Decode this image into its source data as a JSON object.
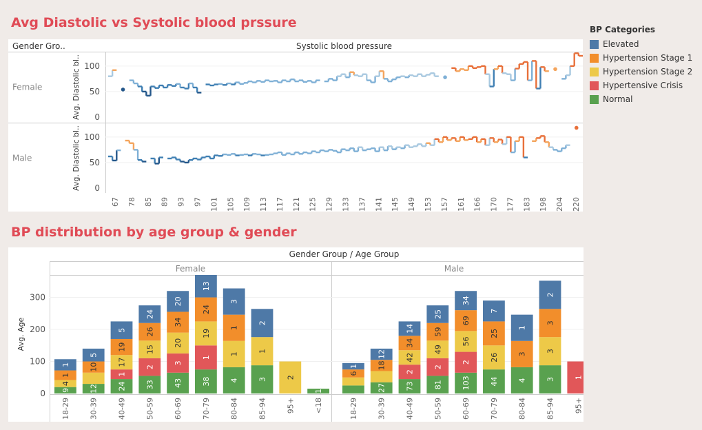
{
  "title1": "Avg Diastolic vs Systolic blood prssure",
  "title2": "BP distribution by age group & gender",
  "legend": {
    "title": "BP Categories",
    "items": [
      {
        "label": "Elevated",
        "color": "#4e79a7"
      },
      {
        "label": "Hypertension Stage 1",
        "color": "#f28e2b"
      },
      {
        "label": "Hypertension Stage 2",
        "color": "#edc948"
      },
      {
        "label": "Hypertensive Crisis",
        "color": "#e15759"
      },
      {
        "label": "Normal",
        "color": "#59a14f"
      }
    ]
  },
  "chart_data": [
    {
      "type": "line",
      "header_left": "Gender Gro..",
      "header": "Systolic blood pressure",
      "ylabel": "Avg. Diastolic bl..",
      "ylim": [
        0,
        120
      ],
      "yticks": [
        0,
        50,
        100
      ],
      "xticks": [
        "67",
        "78",
        "85",
        "89",
        "93",
        "97",
        "101",
        "105",
        "109",
        "113",
        "117",
        "121",
        "125",
        "129",
        "133",
        "137",
        "141",
        "145",
        "149",
        "153",
        "157",
        "161",
        "166",
        "170",
        "177",
        "183",
        "198",
        "204",
        "220"
      ],
      "rows": [
        {
          "name": "Female",
          "values": [
            80,
            92,
            null,
            54,
            null,
            72,
            66,
            60,
            50,
            42,
            60,
            57,
            62,
            58,
            63,
            61,
            65,
            58,
            56,
            66,
            58,
            48,
            null,
            64,
            62,
            64,
            65,
            63,
            66,
            64,
            68,
            65,
            67,
            70,
            68,
            71,
            69,
            72,
            70,
            71,
            68,
            72,
            70,
            74,
            70,
            72,
            69,
            71,
            68,
            72,
            null,
            70,
            75,
            72,
            80,
            84,
            78,
            88,
            82,
            80,
            84,
            72,
            68,
            80,
            90,
            75,
            70,
            74,
            78,
            80,
            78,
            82,
            80,
            84,
            80,
            83,
            86,
            80,
            null,
            78,
            null,
            96,
            90,
            94,
            92,
            100,
            96,
            98,
            100,
            84,
            60,
            94,
            100,
            86,
            84,
            72,
            95,
            104,
            108,
            72,
            110,
            56,
            98,
            90,
            null,
            94,
            null,
            75,
            82,
            100,
            125,
            120
          ]
        },
        {
          "name": "Male",
          "values": [
            62,
            54,
            74,
            null,
            93,
            88,
            75,
            55,
            52,
            null,
            58,
            48,
            60,
            null,
            58,
            60,
            56,
            52,
            50,
            55,
            58,
            56,
            60,
            62,
            58,
            64,
            63,
            66,
            65,
            67,
            64,
            65,
            66,
            64,
            67,
            66,
            64,
            65,
            66,
            68,
            70,
            65,
            68,
            66,
            70,
            67,
            70,
            68,
            72,
            70,
            74,
            72,
            75,
            73,
            70,
            76,
            74,
            78,
            72,
            80,
            74,
            76,
            78,
            72,
            80,
            74,
            82,
            76,
            80,
            78,
            84,
            80,
            82,
            86,
            82,
            88,
            84,
            96,
            90,
            100,
            94,
            98,
            92,
            100,
            94,
            96,
            100,
            90,
            96,
            84,
            98,
            90,
            95,
            86,
            100,
            70,
            92,
            100,
            60,
            null,
            92,
            98,
            102,
            90,
            80,
            75,
            72,
            78,
            84,
            null,
            118
          ]
        }
      ]
    },
    {
      "type": "bar",
      "header": "Gender Group / Age Group",
      "ylabel": "Avg. Age",
      "ylim": [
        0,
        370
      ],
      "yticks": [
        0,
        100,
        200,
        300
      ],
      "panels": [
        {
          "name": "Female",
          "groups": [
            {
              "label": "18-29",
              "segments": [
                {
                  "cat": "Normal",
                  "value": 20,
                  "label": "9"
                },
                {
                  "cat": "Hypertension Stage 2",
                  "value": 22,
                  "label": "4"
                },
                {
                  "cat": "Hypertensive Crisis",
                  "value": 0
                },
                {
                  "cat": "Hypertension Stage 1",
                  "value": 30,
                  "label": "1"
                },
                {
                  "cat": "Elevated",
                  "value": 35,
                  "label": "1"
                }
              ]
            },
            {
              "label": "30-39",
              "segments": [
                {
                  "cat": "Normal",
                  "value": 30,
                  "label": "12"
                },
                {
                  "cat": "Hypertension Stage 2",
                  "value": 35,
                  "label": ""
                },
                {
                  "cat": "Hypertension Stage 1",
                  "value": 35,
                  "label": "10"
                },
                {
                  "cat": "Elevated",
                  "value": 40,
                  "label": "5"
                }
              ]
            },
            {
              "label": "40-49",
              "segments": [
                {
                  "cat": "Normal",
                  "value": 45,
                  "label": "24"
                },
                {
                  "cat": "Hypertensive Crisis",
                  "value": 30,
                  "label": "1"
                },
                {
                  "cat": "Hypertension Stage 2",
                  "value": 45,
                  "label": "17"
                },
                {
                  "cat": "Hypertension Stage 1",
                  "value": 50,
                  "label": "19"
                },
                {
                  "cat": "Elevated",
                  "value": 55,
                  "label": "5"
                }
              ]
            },
            {
              "label": "50-59",
              "segments": [
                {
                  "cat": "Normal",
                  "value": 55,
                  "label": "33"
                },
                {
                  "cat": "Hypertensive Crisis",
                  "value": 55,
                  "label": "2"
                },
                {
                  "cat": "Hypertension Stage 2",
                  "value": 55,
                  "label": "15"
                },
                {
                  "cat": "Hypertension Stage 1",
                  "value": 55,
                  "label": "26"
                },
                {
                  "cat": "Elevated",
                  "value": 55,
                  "label": "24"
                }
              ]
            },
            {
              "label": "60-69",
              "segments": [
                {
                  "cat": "Normal",
                  "value": 65,
                  "label": "43"
                },
                {
                  "cat": "Hypertensive Crisis",
                  "value": 60,
                  "label": "3"
                },
                {
                  "cat": "Hypertension Stage 2",
                  "value": 65,
                  "label": "20"
                },
                {
                  "cat": "Hypertension Stage 1",
                  "value": 65,
                  "label": "34"
                },
                {
                  "cat": "Elevated",
                  "value": 65,
                  "label": "20"
                }
              ]
            },
            {
              "label": "70-79",
              "segments": [
                {
                  "cat": "Normal",
                  "value": 75,
                  "label": "38"
                },
                {
                  "cat": "Hypertensive Crisis",
                  "value": 75,
                  "label": "1"
                },
                {
                  "cat": "Hypertension Stage 2",
                  "value": 75,
                  "label": "19"
                },
                {
                  "cat": "Hypertension Stage 1",
                  "value": 75,
                  "label": "24"
                },
                {
                  "cat": "Elevated",
                  "value": 70,
                  "label": "13"
                }
              ]
            },
            {
              "label": "80-84",
              "segments": [
                {
                  "cat": "Normal",
                  "value": 82,
                  "label": "4"
                },
                {
                  "cat": "Hypertension Stage 2",
                  "value": 82,
                  "label": "1"
                },
                {
                  "cat": "Hypertension Stage 1",
                  "value": 82,
                  "label": "1"
                },
                {
                  "cat": "Elevated",
                  "value": 82,
                  "label": "3"
                }
              ]
            },
            {
              "label": "85-94",
              "segments": [
                {
                  "cat": "Normal",
                  "value": 88,
                  "label": "3"
                },
                {
                  "cat": "Hypertension Stage 2",
                  "value": 88,
                  "label": "1"
                },
                {
                  "cat": "Elevated",
                  "value": 88,
                  "label": "2"
                }
              ]
            },
            {
              "label": "95+",
              "segments": [
                {
                  "cat": "Hypertension Stage 2",
                  "value": 100,
                  "label": "2"
                }
              ]
            },
            {
              "label": "<18",
              "segments": [
                {
                  "cat": "Normal",
                  "value": 15,
                  "label": "1"
                }
              ]
            }
          ]
        },
        {
          "name": "Male",
          "groups": [
            {
              "label": "18-29",
              "segments": [
                {
                  "cat": "Normal",
                  "value": 25,
                  "label": ""
                },
                {
                  "cat": "Hypertension Stage 2",
                  "value": 25,
                  "label": ""
                },
                {
                  "cat": "Hypertension Stage 1",
                  "value": 25,
                  "label": "6"
                },
                {
                  "cat": "Elevated",
                  "value": 20,
                  "label": "1"
                }
              ]
            },
            {
              "label": "30-39",
              "segments": [
                {
                  "cat": "Normal",
                  "value": 35,
                  "label": "27"
                },
                {
                  "cat": "Hypertension Stage 2",
                  "value": 35,
                  "label": ""
                },
                {
                  "cat": "Hypertension Stage 1",
                  "value": 35,
                  "label": "18"
                },
                {
                  "cat": "Elevated",
                  "value": 35,
                  "label": "12"
                }
              ]
            },
            {
              "label": "40-49",
              "segments": [
                {
                  "cat": "Normal",
                  "value": 45,
                  "label": "73"
                },
                {
                  "cat": "Hypertensive Crisis",
                  "value": 45,
                  "label": "2"
                },
                {
                  "cat": "Hypertension Stage 2",
                  "value": 45,
                  "label": "42"
                },
                {
                  "cat": "Hypertension Stage 1",
                  "value": 45,
                  "label": "34"
                },
                {
                  "cat": "Elevated",
                  "value": 45,
                  "label": "14"
                }
              ]
            },
            {
              "label": "50-59",
              "segments": [
                {
                  "cat": "Normal",
                  "value": 55,
                  "label": "81"
                },
                {
                  "cat": "Hypertensive Crisis",
                  "value": 55,
                  "label": "2"
                },
                {
                  "cat": "Hypertension Stage 2",
                  "value": 55,
                  "label": "49"
                },
                {
                  "cat": "Hypertension Stage 1",
                  "value": 55,
                  "label": "59"
                },
                {
                  "cat": "Elevated",
                  "value": 55,
                  "label": "25"
                }
              ]
            },
            {
              "label": "60-69",
              "segments": [
                {
                  "cat": "Normal",
                  "value": 65,
                  "label": "103"
                },
                {
                  "cat": "Hypertensive Crisis",
                  "value": 65,
                  "label": "2"
                },
                {
                  "cat": "Hypertension Stage 2",
                  "value": 65,
                  "label": "56"
                },
                {
                  "cat": "Hypertension Stage 1",
                  "value": 65,
                  "label": "69"
                },
                {
                  "cat": "Elevated",
                  "value": 60,
                  "label": "34"
                }
              ]
            },
            {
              "label": "70-79",
              "segments": [
                {
                  "cat": "Normal",
                  "value": 75,
                  "label": "44"
                },
                {
                  "cat": "Hypertension Stage 2",
                  "value": 75,
                  "label": "26"
                },
                {
                  "cat": "Hypertension Stage 1",
                  "value": 75,
                  "label": "25"
                },
                {
                  "cat": "Elevated",
                  "value": 65,
                  "label": "7"
                }
              ]
            },
            {
              "label": "80-84",
              "segments": [
                {
                  "cat": "Normal",
                  "value": 82,
                  "label": "4"
                },
                {
                  "cat": "Hypertension Stage 1",
                  "value": 82,
                  "label": "3"
                },
                {
                  "cat": "Elevated",
                  "value": 82,
                  "label": "1"
                }
              ]
            },
            {
              "label": "85-94",
              "segments": [
                {
                  "cat": "Normal",
                  "value": 88,
                  "label": "3"
                },
                {
                  "cat": "Hypertension Stage 2",
                  "value": 88,
                  "label": "3"
                },
                {
                  "cat": "Hypertension Stage 1",
                  "value": 88,
                  "label": "3"
                },
                {
                  "cat": "Elevated",
                  "value": 88,
                  "label": "2"
                }
              ]
            },
            {
              "label": "95+",
              "segments": [
                {
                  "cat": "Hypertensive Crisis",
                  "value": 100,
                  "label": "1"
                }
              ]
            }
          ]
        }
      ]
    }
  ]
}
